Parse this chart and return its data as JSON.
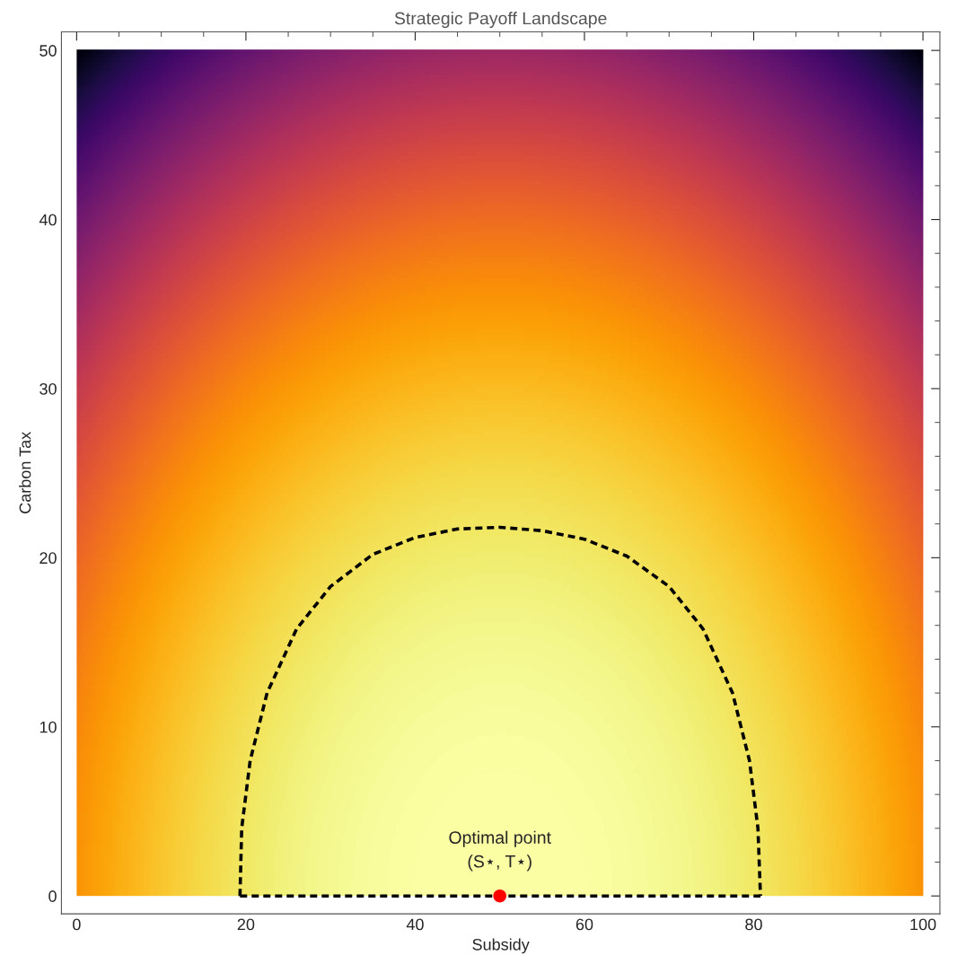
{
  "chart_data": {
    "type": "line",
    "title": "Strategic Payoff Landscape",
    "xlabel": "Subsidy",
    "ylabel": "Carbon Tax",
    "xlim": [
      -1.8,
      102
    ],
    "ylim": [
      -1.06,
      51.1
    ],
    "xticks": [
      0,
      20,
      40,
      60,
      80,
      100
    ],
    "yticks": [
      0,
      10,
      20,
      30,
      40,
      50
    ],
    "grid": false,
    "legend": false,
    "series": [
      {
        "type": "line",
        "color": "#000000",
        "line_style": "dashed",
        "marker": "none",
        "x": [
          19.3,
          19.5,
          20.5,
          22.5,
          26,
          30,
          35,
          40,
          45,
          50,
          55,
          60,
          65,
          70,
          74,
          77.5,
          79.5,
          80.5,
          80.8
        ],
        "values": [
          0,
          4,
          8,
          12,
          15.8,
          18.3,
          20.2,
          21.2,
          21.7,
          21.8,
          21.6,
          21.1,
          20.1,
          18.3,
          15.8,
          12,
          8,
          4,
          0
        ]
      },
      {
        "type": "line",
        "color": "#000000",
        "line_style": "dashed",
        "marker": "none",
        "x": [
          19.3,
          80.8
        ],
        "values": [
          0,
          0
        ]
      },
      {
        "type": "scatter",
        "color": "#ff0000",
        "marker": "circle",
        "x": [
          50
        ],
        "values": [
          0
        ]
      }
    ],
    "annotations": [
      {
        "text": "Optimal point\n(S⋆, T⋆)",
        "x": 50,
        "y": 0
      }
    ]
  }
}
